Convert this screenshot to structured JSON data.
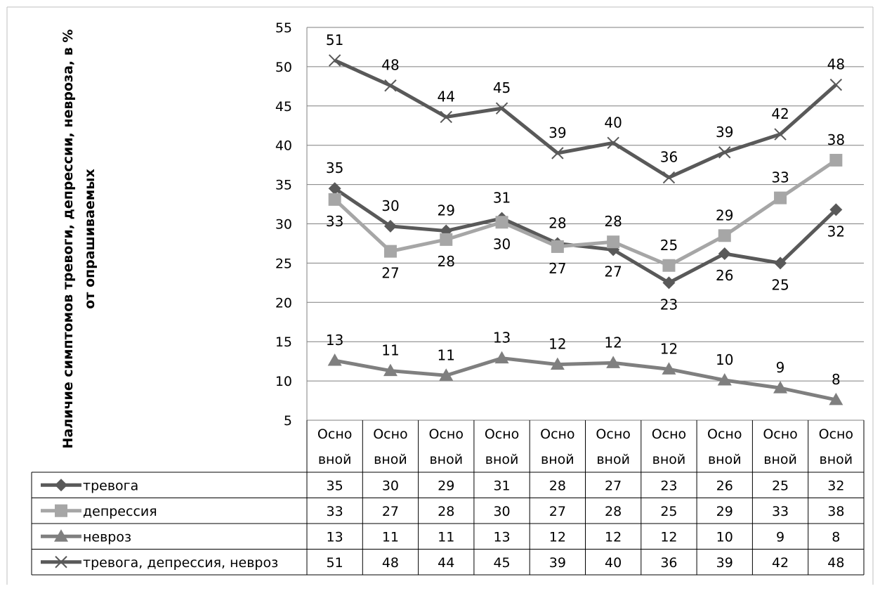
{
  "chart_data": {
    "type": "line",
    "title": "",
    "ylabel_line1": "Наличие  симптомов  тревоги, депрессии, невроза, в %",
    "ylabel_line2": "от опрашиваемых",
    "xlabel": "",
    "ylim": [
      5,
      55
    ],
    "yticks": [
      5,
      10,
      15,
      20,
      25,
      30,
      35,
      40,
      45,
      50,
      55
    ],
    "grid": true,
    "legend": "data-table",
    "categories": [
      [
        "Осно",
        "вной"
      ],
      [
        "Осно",
        "вной"
      ],
      [
        "Осно",
        "вной"
      ],
      [
        "Осно",
        "вной"
      ],
      [
        "Осно",
        "вной"
      ],
      [
        "Осно",
        "вной"
      ],
      [
        "Осно",
        "вной"
      ],
      [
        "Осно",
        "вной"
      ],
      [
        "Осно",
        "вной"
      ],
      [
        "Осно",
        "вной"
      ]
    ],
    "series": [
      {
        "name": "тревога",
        "marker": "diamond",
        "color": "#595959",
        "values": [
          34.5,
          29.7,
          29.1,
          30.7,
          27.5,
          26.7,
          22.5,
          26.2,
          25.0,
          31.8
        ],
        "labels": [
          35,
          30,
          29,
          31,
          28,
          27,
          23,
          26,
          25,
          32
        ],
        "label_pos": [
          "above",
          "above",
          "above",
          "above",
          "above",
          "below",
          "below",
          "below",
          "below",
          "below"
        ]
      },
      {
        "name": "депрессия",
        "marker": "square",
        "color": "#a6a6a6",
        "values": [
          33.1,
          26.5,
          28.0,
          30.2,
          27.1,
          27.7,
          24.7,
          28.5,
          33.3,
          38.1
        ],
        "labels": [
          33,
          27,
          28,
          30,
          27,
          28,
          25,
          29,
          33,
          38
        ],
        "label_pos": [
          "below",
          "below",
          "below",
          "below",
          "below",
          "above",
          "above",
          "above",
          "above",
          "above"
        ]
      },
      {
        "name": "невроз",
        "marker": "triangle",
        "color": "#7f7f7f",
        "values": [
          12.6,
          11.3,
          10.7,
          12.9,
          12.1,
          12.3,
          11.5,
          10.1,
          9.1,
          7.6
        ],
        "labels": [
          13,
          11,
          11,
          13,
          12,
          12,
          12,
          10,
          9,
          8
        ],
        "label_pos": [
          "above",
          "above",
          "above",
          "above",
          "above",
          "above",
          "above",
          "above",
          "above",
          "above"
        ]
      },
      {
        "name": "тревога, депрессия, невроз",
        "marker": "x",
        "color": "#595959",
        "values": [
          50.8,
          47.6,
          43.6,
          44.7,
          39.0,
          40.3,
          35.9,
          39.1,
          41.4,
          47.7
        ],
        "labels": [
          51,
          48,
          44,
          45,
          39,
          40,
          36,
          39,
          42,
          48
        ],
        "label_pos": [
          "above",
          "above",
          "above",
          "above",
          "above",
          "above",
          "above",
          "above",
          "above",
          "above"
        ]
      }
    ]
  }
}
